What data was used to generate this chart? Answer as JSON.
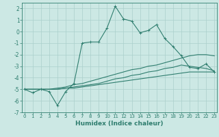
{
  "xlabel": "Humidex (Indice chaleur)",
  "x": [
    0,
    1,
    2,
    3,
    4,
    5,
    6,
    7,
    8,
    9,
    10,
    11,
    12,
    13,
    14,
    15,
    16,
    17,
    18,
    19,
    20,
    21,
    22,
    23
  ],
  "line1": [
    -5.0,
    -5.3,
    -5.0,
    -5.2,
    -6.4,
    -5.2,
    -4.5,
    -1.0,
    -0.9,
    -0.9,
    0.3,
    2.2,
    1.1,
    0.9,
    -0.1,
    0.1,
    0.6,
    -0.6,
    -1.3,
    -2.1,
    -3.1,
    -3.2,
    -2.8,
    -3.5
  ],
  "line2": [
    -5.0,
    -5.0,
    -5.0,
    -5.0,
    -4.9,
    -4.8,
    -4.6,
    -4.5,
    -4.3,
    -4.1,
    -3.9,
    -3.7,
    -3.5,
    -3.3,
    -3.2,
    -3.0,
    -2.9,
    -2.7,
    -2.5,
    -2.3,
    -2.1,
    -2.0,
    -2.0,
    -2.1
  ],
  "line3": [
    -5.0,
    -5.0,
    -5.0,
    -5.0,
    -5.0,
    -4.9,
    -4.8,
    -4.7,
    -4.6,
    -4.5,
    -4.3,
    -4.1,
    -4.0,
    -3.8,
    -3.7,
    -3.5,
    -3.4,
    -3.2,
    -3.1,
    -2.9,
    -3.0,
    -3.1,
    -3.2,
    -3.4
  ],
  "line4": [
    -5.0,
    -5.0,
    -5.0,
    -5.0,
    -5.0,
    -4.9,
    -4.9,
    -4.8,
    -4.7,
    -4.6,
    -4.5,
    -4.4,
    -4.3,
    -4.2,
    -4.1,
    -4.0,
    -3.9,
    -3.8,
    -3.7,
    -3.6,
    -3.5,
    -3.5,
    -3.5,
    -3.5
  ],
  "line_color": "#2e7d6e",
  "bg_color": "#cce8e4",
  "grid_color": "#aacfcb",
  "ylim": [
    -7,
    2.5
  ],
  "yticks": [
    -7,
    -6,
    -5,
    -4,
    -3,
    -2,
    -1,
    0,
    1,
    2
  ],
  "xticks": [
    0,
    1,
    2,
    3,
    4,
    5,
    6,
    7,
    8,
    9,
    10,
    11,
    12,
    13,
    14,
    15,
    16,
    17,
    18,
    19,
    20,
    21,
    22,
    23
  ],
  "xlabel_fontsize": 6.5,
  "tick_fontsize": 5.5,
  "xtick_fontsize": 5.0
}
